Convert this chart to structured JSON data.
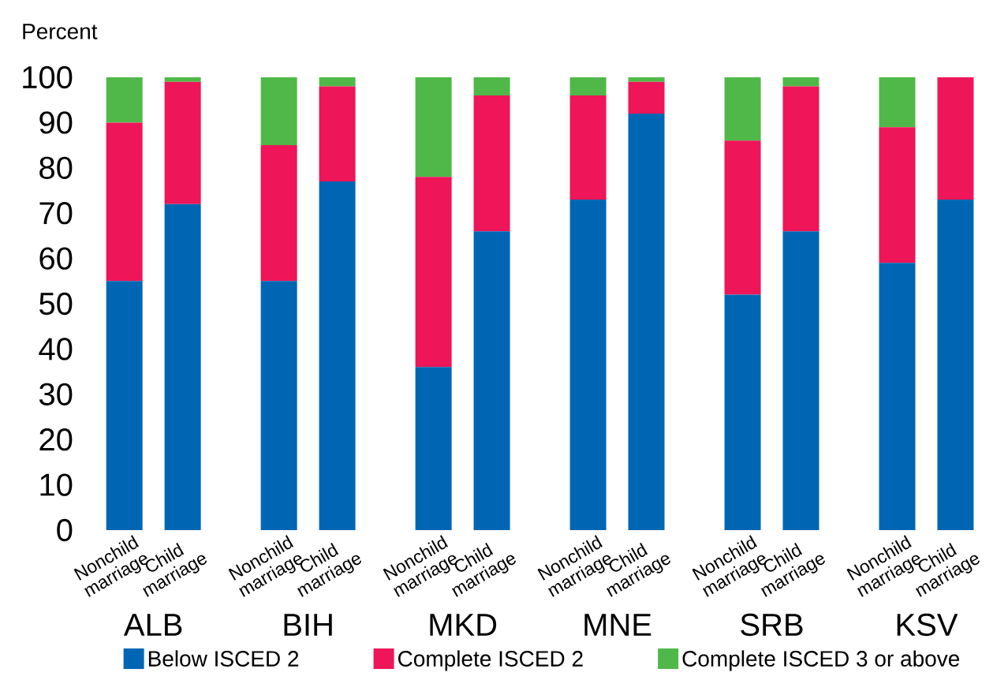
{
  "chart_data": {
    "type": "bar",
    "stacked": true,
    "ylabel": "Percent",
    "categories": [
      "Nonchild marriage",
      "Child marriage",
      "Nonchild marriage",
      "Child marriage",
      "Nonchild marriage",
      "Child marriage",
      "Nonchild marriage",
      "Child marriage",
      "Nonchild marriage",
      "Child marriage",
      "Nonchild marriage",
      "Child marriage"
    ],
    "annotations": [
      "ALB",
      "BIH",
      "MKD",
      "MNE",
      "SRB",
      "KSV"
    ],
    "series": [
      {
        "name": "Below ISCED 2",
        "color": "#0066b3",
        "values": [
          55,
          72,
          55,
          77,
          36,
          66,
          73,
          92,
          52,
          66,
          59,
          73
        ]
      },
      {
        "name": "Complete ISCED 2",
        "color": "#ee1558",
        "values": [
          35,
          27,
          30,
          21,
          42,
          30,
          23,
          7,
          34,
          32,
          30,
          27
        ]
      },
      {
        "name": "Complete ISCED 3 or above",
        "color": "#50b848",
        "values": [
          10,
          1,
          15,
          2,
          22,
          4,
          4,
          1,
          14,
          2,
          11,
          0
        ]
      }
    ],
    "ylim": [
      0,
      100
    ],
    "yticks": [
      0,
      10,
      20,
      30,
      40,
      50,
      60,
      70,
      80,
      90,
      100
    ],
    "legend": "bottom"
  }
}
